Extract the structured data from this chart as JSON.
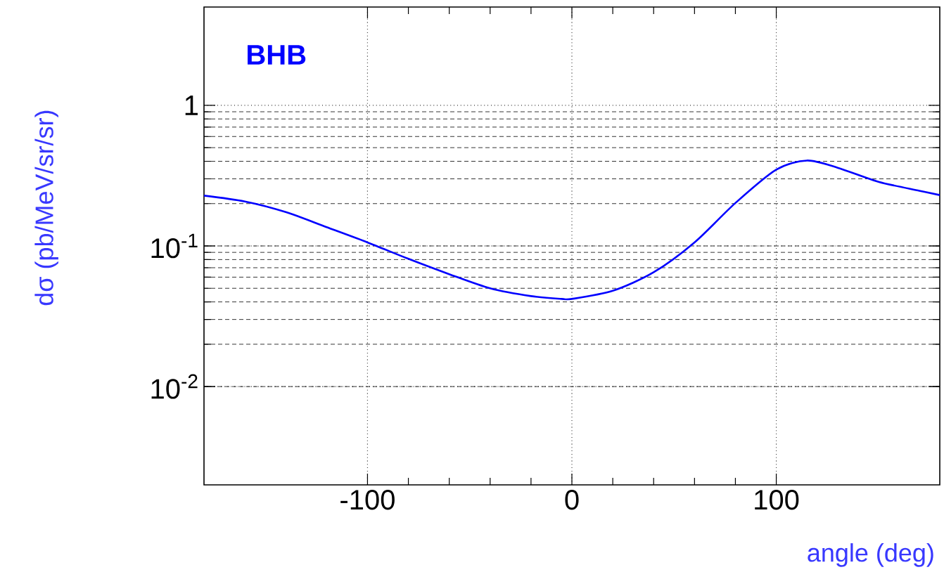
{
  "chart_data": {
    "type": "line",
    "xlabel": "angle (deg)",
    "ylabel": "dσ (pb/MeV/sr/sr)",
    "annotations": [
      "BHB"
    ],
    "x": [
      -180,
      -160,
      -140,
      -120,
      -100,
      -80,
      -60,
      -40,
      -20,
      -5,
      0,
      20,
      40,
      60,
      80,
      100,
      115,
      130,
      150,
      170,
      180
    ],
    "series": [
      {
        "color": "#0000ff",
        "values": [
          0.228,
          0.207,
          0.174,
          0.136,
          0.106,
          0.081,
          0.063,
          0.05,
          0.044,
          0.042,
          0.042,
          0.048,
          0.065,
          0.106,
          0.202,
          0.349,
          0.405,
          0.36,
          0.286,
          0.247,
          0.23
        ]
      }
    ],
    "log": "y",
    "xlim": [
      -180,
      180
    ],
    "ylim": [
      0.002,
      5
    ],
    "xticks": [
      -100,
      0,
      100
    ],
    "yticks": [
      {
        "value": 0.01,
        "label": "10$^{-2}$"
      },
      {
        "value": 0.1,
        "label": "10$^{-1}$"
      },
      {
        "value": 1,
        "label": "1"
      }
    ],
    "grid": true,
    "marker": "none",
    "line_style": "solid"
  }
}
